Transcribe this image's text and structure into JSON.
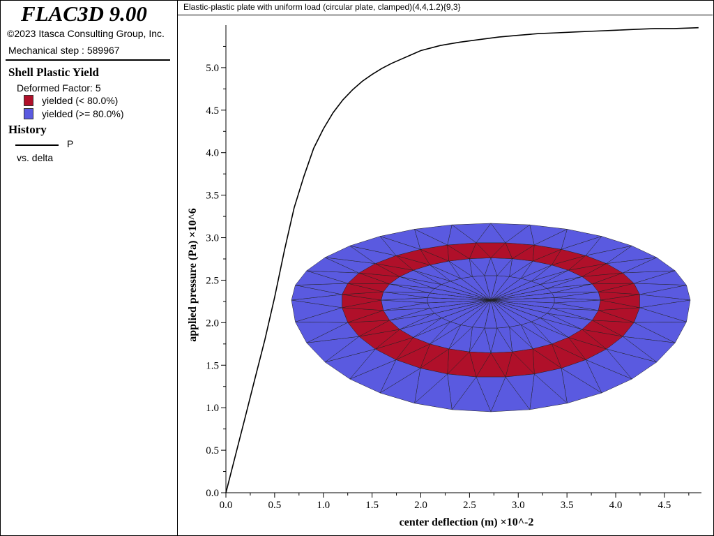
{
  "app": {
    "title": "FLAC3D 9.00",
    "copyright": "©2023 Itasca Consulting Group, Inc.",
    "step_label": "Mechanical step : 589967"
  },
  "legend": {
    "section_title": "Shell Plastic Yield",
    "deformed_factor": "Deformed Factor: 5",
    "items": [
      {
        "label": "yielded (< 80.0%)",
        "color": "#B0102A"
      },
      {
        "label": "yielded (>= 80.0%)",
        "color": "#5A5AE0"
      }
    ]
  },
  "history": {
    "section_title": "History",
    "series_label": "P",
    "vs_label": "vs. delta"
  },
  "plot": {
    "title": "Elastic-plastic plate with uniform load (circular plate, clamped)(4,4,1.2){9,3}"
  },
  "chart_data": {
    "type": "line",
    "xlabel": "center deflection (m) ×10^-2",
    "ylabel": "applied pressure (Pa) ×10^6",
    "xlim": [
      0,
      4.88
    ],
    "ylim": [
      0,
      5.5
    ],
    "xticks": [
      "0.0",
      "0.5",
      "1.0",
      "1.5",
      "2.0",
      "2.5",
      "3.0",
      "3.5",
      "4.0",
      "4.5"
    ],
    "yticks": [
      "0.0",
      "0.5",
      "1.0",
      "1.5",
      "2.0",
      "2.5",
      "3.0",
      "3.5",
      "4.0",
      "4.5",
      "5.0"
    ],
    "series": [
      {
        "name": "P",
        "x": [
          0,
          0.1,
          0.2,
          0.3,
          0.4,
          0.5,
          0.6,
          0.7,
          0.8,
          0.9,
          1.0,
          1.1,
          1.2,
          1.3,
          1.4,
          1.5,
          1.6,
          1.7,
          1.8,
          1.9,
          2.0,
          2.2,
          2.4,
          2.6,
          2.8,
          3.0,
          3.2,
          3.4,
          3.6,
          3.8,
          4.0,
          4.2,
          4.4,
          4.6,
          4.85
        ],
        "y": [
          0,
          0.45,
          0.9,
          1.35,
          1.8,
          2.3,
          2.85,
          3.35,
          3.72,
          4.05,
          4.28,
          4.47,
          4.62,
          4.74,
          4.84,
          4.92,
          4.99,
          5.05,
          5.1,
          5.15,
          5.2,
          5.26,
          5.3,
          5.33,
          5.36,
          5.38,
          5.4,
          5.41,
          5.42,
          5.43,
          5.44,
          5.45,
          5.46,
          5.46,
          5.47
        ]
      }
    ]
  }
}
